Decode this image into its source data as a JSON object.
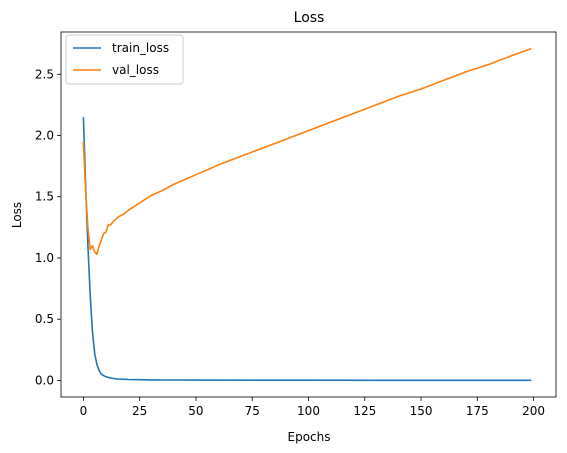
{
  "chart_data": {
    "type": "line",
    "title": "Loss",
    "xlabel": "Epochs",
    "ylabel": "Loss",
    "xlim": [
      -9.95,
      209.95
    ],
    "ylim": [
      -0.135,
      2.845
    ],
    "xticks": [
      0,
      25,
      50,
      75,
      100,
      125,
      150,
      175,
      200
    ],
    "yticks": [
      0.0,
      0.5,
      1.0,
      1.5,
      2.0,
      2.5
    ],
    "ytick_labels": [
      "0.0",
      "0.5",
      "1.0",
      "1.5",
      "2.0",
      "2.5"
    ],
    "grid": false,
    "legend": "top-left",
    "series": [
      {
        "name": "train_loss",
        "color": "#1f77b4",
        "x": [
          0,
          1,
          2,
          3,
          4,
          5,
          6,
          7,
          8,
          10,
          12,
          15,
          20,
          25,
          30,
          40,
          50,
          75,
          100,
          150,
          199
        ],
        "y": [
          2.15,
          1.6,
          1.1,
          0.7,
          0.4,
          0.22,
          0.13,
          0.08,
          0.05,
          0.03,
          0.02,
          0.012,
          0.008,
          0.006,
          0.005,
          0.004,
          0.003,
          0.002,
          0.002,
          0.001,
          0.001
        ]
      },
      {
        "name": "val_loss",
        "color": "#ff7f0e",
        "x": [
          0,
          1,
          2,
          3,
          4,
          5,
          6,
          7,
          8,
          9,
          10,
          11,
          12,
          14,
          16,
          18,
          20,
          25,
          30,
          35,
          40,
          50,
          60,
          70,
          80,
          90,
          100,
          110,
          120,
          130,
          140,
          150,
          160,
          170,
          180,
          190,
          199
        ],
        "y": [
          1.95,
          1.55,
          1.25,
          1.07,
          1.1,
          1.05,
          1.03,
          1.1,
          1.15,
          1.2,
          1.21,
          1.27,
          1.27,
          1.31,
          1.34,
          1.36,
          1.39,
          1.45,
          1.51,
          1.55,
          1.6,
          1.68,
          1.76,
          1.83,
          1.9,
          1.97,
          2.04,
          2.11,
          2.18,
          2.25,
          2.32,
          2.38,
          2.45,
          2.52,
          2.58,
          2.65,
          2.71
        ]
      }
    ]
  }
}
